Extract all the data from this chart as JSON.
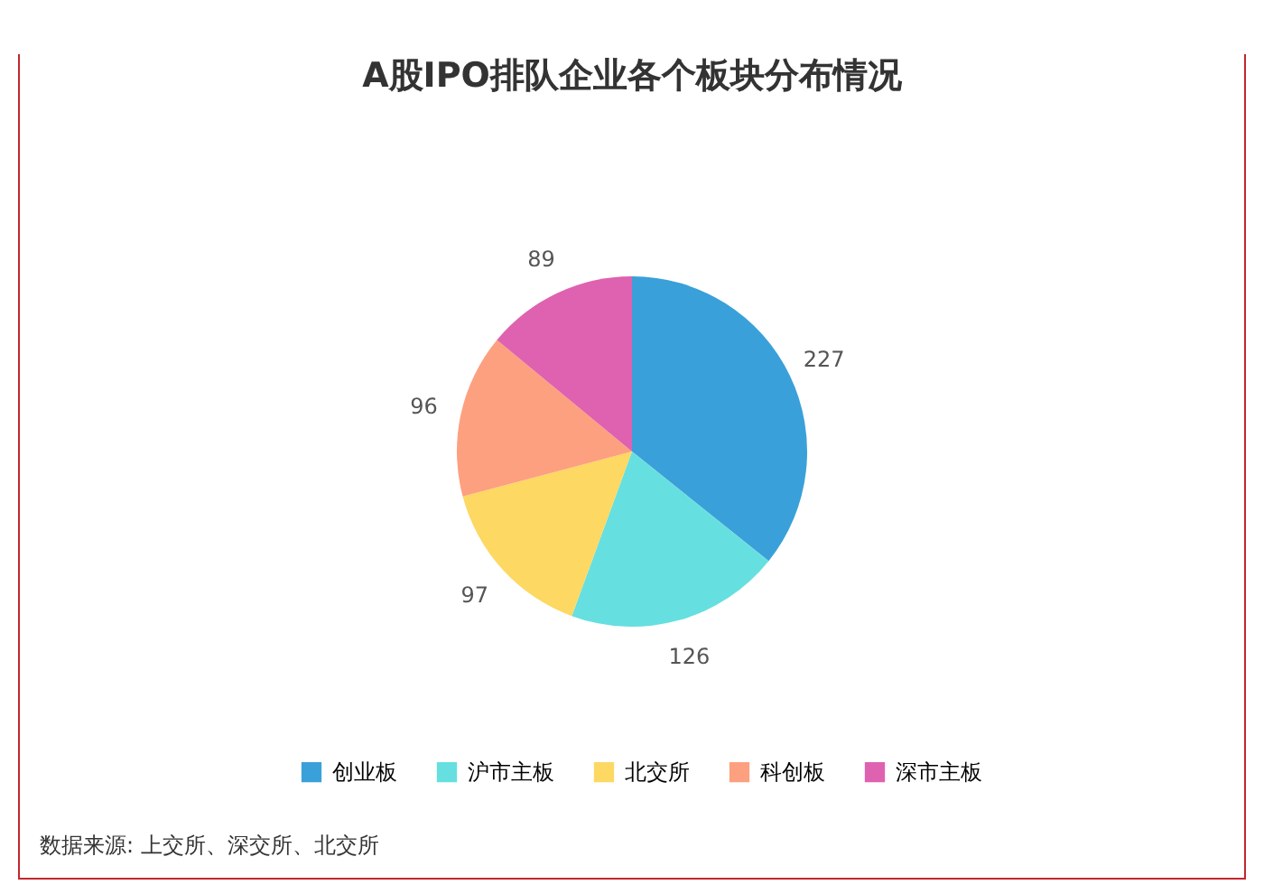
{
  "chart_data": {
    "type": "pie",
    "title": "A股IPO排队企业各个板块分布情况",
    "categories": [
      "创业板",
      "沪市主板",
      "北交所",
      "科创板",
      "深市主板"
    ],
    "values": [
      227,
      126,
      97,
      96,
      89
    ],
    "colors": [
      "#3aa0d9",
      "#66dfe0",
      "#fdd862",
      "#fda07f",
      "#de62b0"
    ],
    "data_labels": true,
    "legend": "bottom",
    "annotations": [
      "数据来源: 上交所、深交所、北交所"
    ]
  }
}
